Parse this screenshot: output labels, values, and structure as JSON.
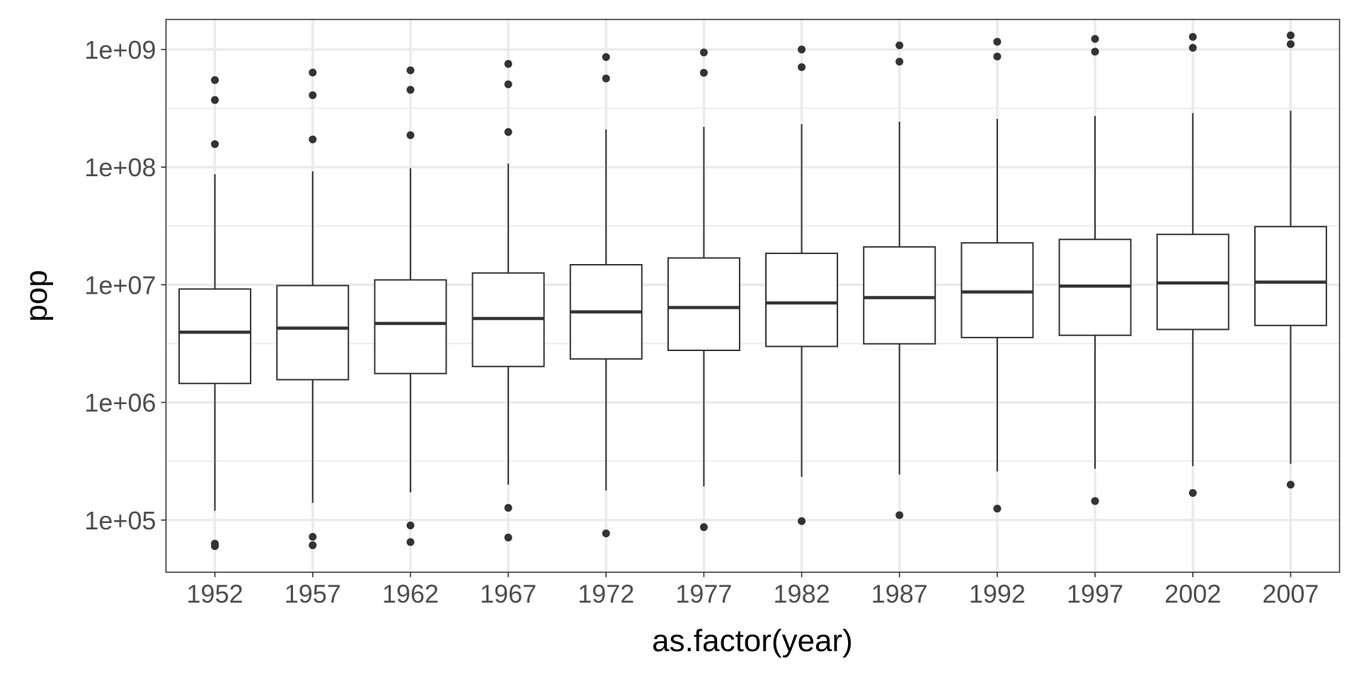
{
  "chart_data": {
    "type": "boxplot",
    "title": "",
    "xlabel": "as.factor(year)",
    "ylabel": "pop",
    "y_scale": "log10",
    "ylim": [
      36000,
      1800000000
    ],
    "y_ticks": [
      {
        "value": 100000,
        "label": "1e+05"
      },
      {
        "value": 1000000,
        "label": "1e+06"
      },
      {
        "value": 10000000,
        "label": "1e+07"
      },
      {
        "value": 100000000,
        "label": "1e+08"
      },
      {
        "value": 1000000000,
        "label": "1e+09"
      }
    ],
    "grid": true,
    "legend": "none",
    "colors": {
      "box_stroke": "#333333",
      "median": "#333333",
      "outlier": "#333333",
      "grid": "#ebebeb",
      "panel_border": "#333333",
      "tick_label": "#4d4d4d",
      "axis_title": "#000000"
    },
    "categories": [
      "1952",
      "1957",
      "1962",
      "1967",
      "1972",
      "1977",
      "1982",
      "1987",
      "1992",
      "1997",
      "2002",
      "2007"
    ],
    "boxes": [
      {
        "category": "1952",
        "lower_whisker": 120000,
        "q1": 1450000,
        "median": 3950000,
        "q3": 9200000,
        "upper_whisker": 87000000,
        "outliers": [
          550000000,
          372000000,
          157000000,
          63000,
          60000
        ]
      },
      {
        "category": "1957",
        "lower_whisker": 140000,
        "q1": 1560000,
        "median": 4280000,
        "q3": 9850000,
        "upper_whisker": 92000000,
        "outliers": [
          637000000,
          409000000,
          172000000,
          72000,
          61000
        ]
      },
      {
        "category": "1962",
        "lower_whisker": 172000,
        "q1": 1760000,
        "median": 4690000,
        "q3": 11000000,
        "upper_whisker": 98000000,
        "outliers": [
          665000000,
          454000000,
          187000000,
          90000,
          65000
        ]
      },
      {
        "category": "1967",
        "lower_whisker": 200000,
        "q1": 2020000,
        "median": 5170000,
        "q3": 12600000,
        "upper_whisker": 107000000,
        "outliers": [
          754000000,
          506000000,
          199000000,
          127000,
          71000
        ]
      },
      {
        "category": "1972",
        "lower_whisker": 178000,
        "q1": 2340000,
        "median": 5880000,
        "q3": 14800000,
        "upper_whisker": 209000000,
        "outliers": [
          862000000,
          567000000,
          77000
        ]
      },
      {
        "category": "1977",
        "lower_whisker": 193000,
        "q1": 2770000,
        "median": 6400000,
        "q3": 16900000,
        "upper_whisker": 220000000,
        "outliers": [
          943000000,
          634000000,
          87000
        ]
      },
      {
        "category": "1982",
        "lower_whisker": 233000,
        "q1": 2990000,
        "median": 7010000,
        "q3": 18500000,
        "upper_whisker": 232000000,
        "outliers": [
          1000000000,
          708000000,
          98000
        ]
      },
      {
        "category": "1987",
        "lower_whisker": 244000,
        "q1": 3150000,
        "median": 7770000,
        "q3": 21000000,
        "upper_whisker": 243000000,
        "outliers": [
          1084000000,
          788000000,
          110000
        ]
      },
      {
        "category": "1992",
        "lower_whisker": 259000,
        "q1": 3560000,
        "median": 8690000,
        "q3": 22700000,
        "upper_whisker": 257000000,
        "outliers": [
          1164000000,
          872000000,
          125000
        ]
      },
      {
        "category": "1997",
        "lower_whisker": 273000,
        "q1": 3720000,
        "median": 9740000,
        "q3": 24300000,
        "upper_whisker": 272000000,
        "outliers": [
          1230000000,
          959000000,
          145000
        ]
      },
      {
        "category": "2002",
        "lower_whisker": 287000,
        "q1": 4170000,
        "median": 10370000,
        "q3": 26800000,
        "upper_whisker": 288000000,
        "outliers": [
          1280000000,
          1034000000,
          170000
        ]
      },
      {
        "category": "2007",
        "lower_whisker": 301000,
        "q1": 4510000,
        "median": 10520000,
        "q3": 31200000,
        "upper_whisker": 301000000,
        "outliers": [
          1318000000,
          1110000000,
          200000
        ]
      }
    ]
  }
}
